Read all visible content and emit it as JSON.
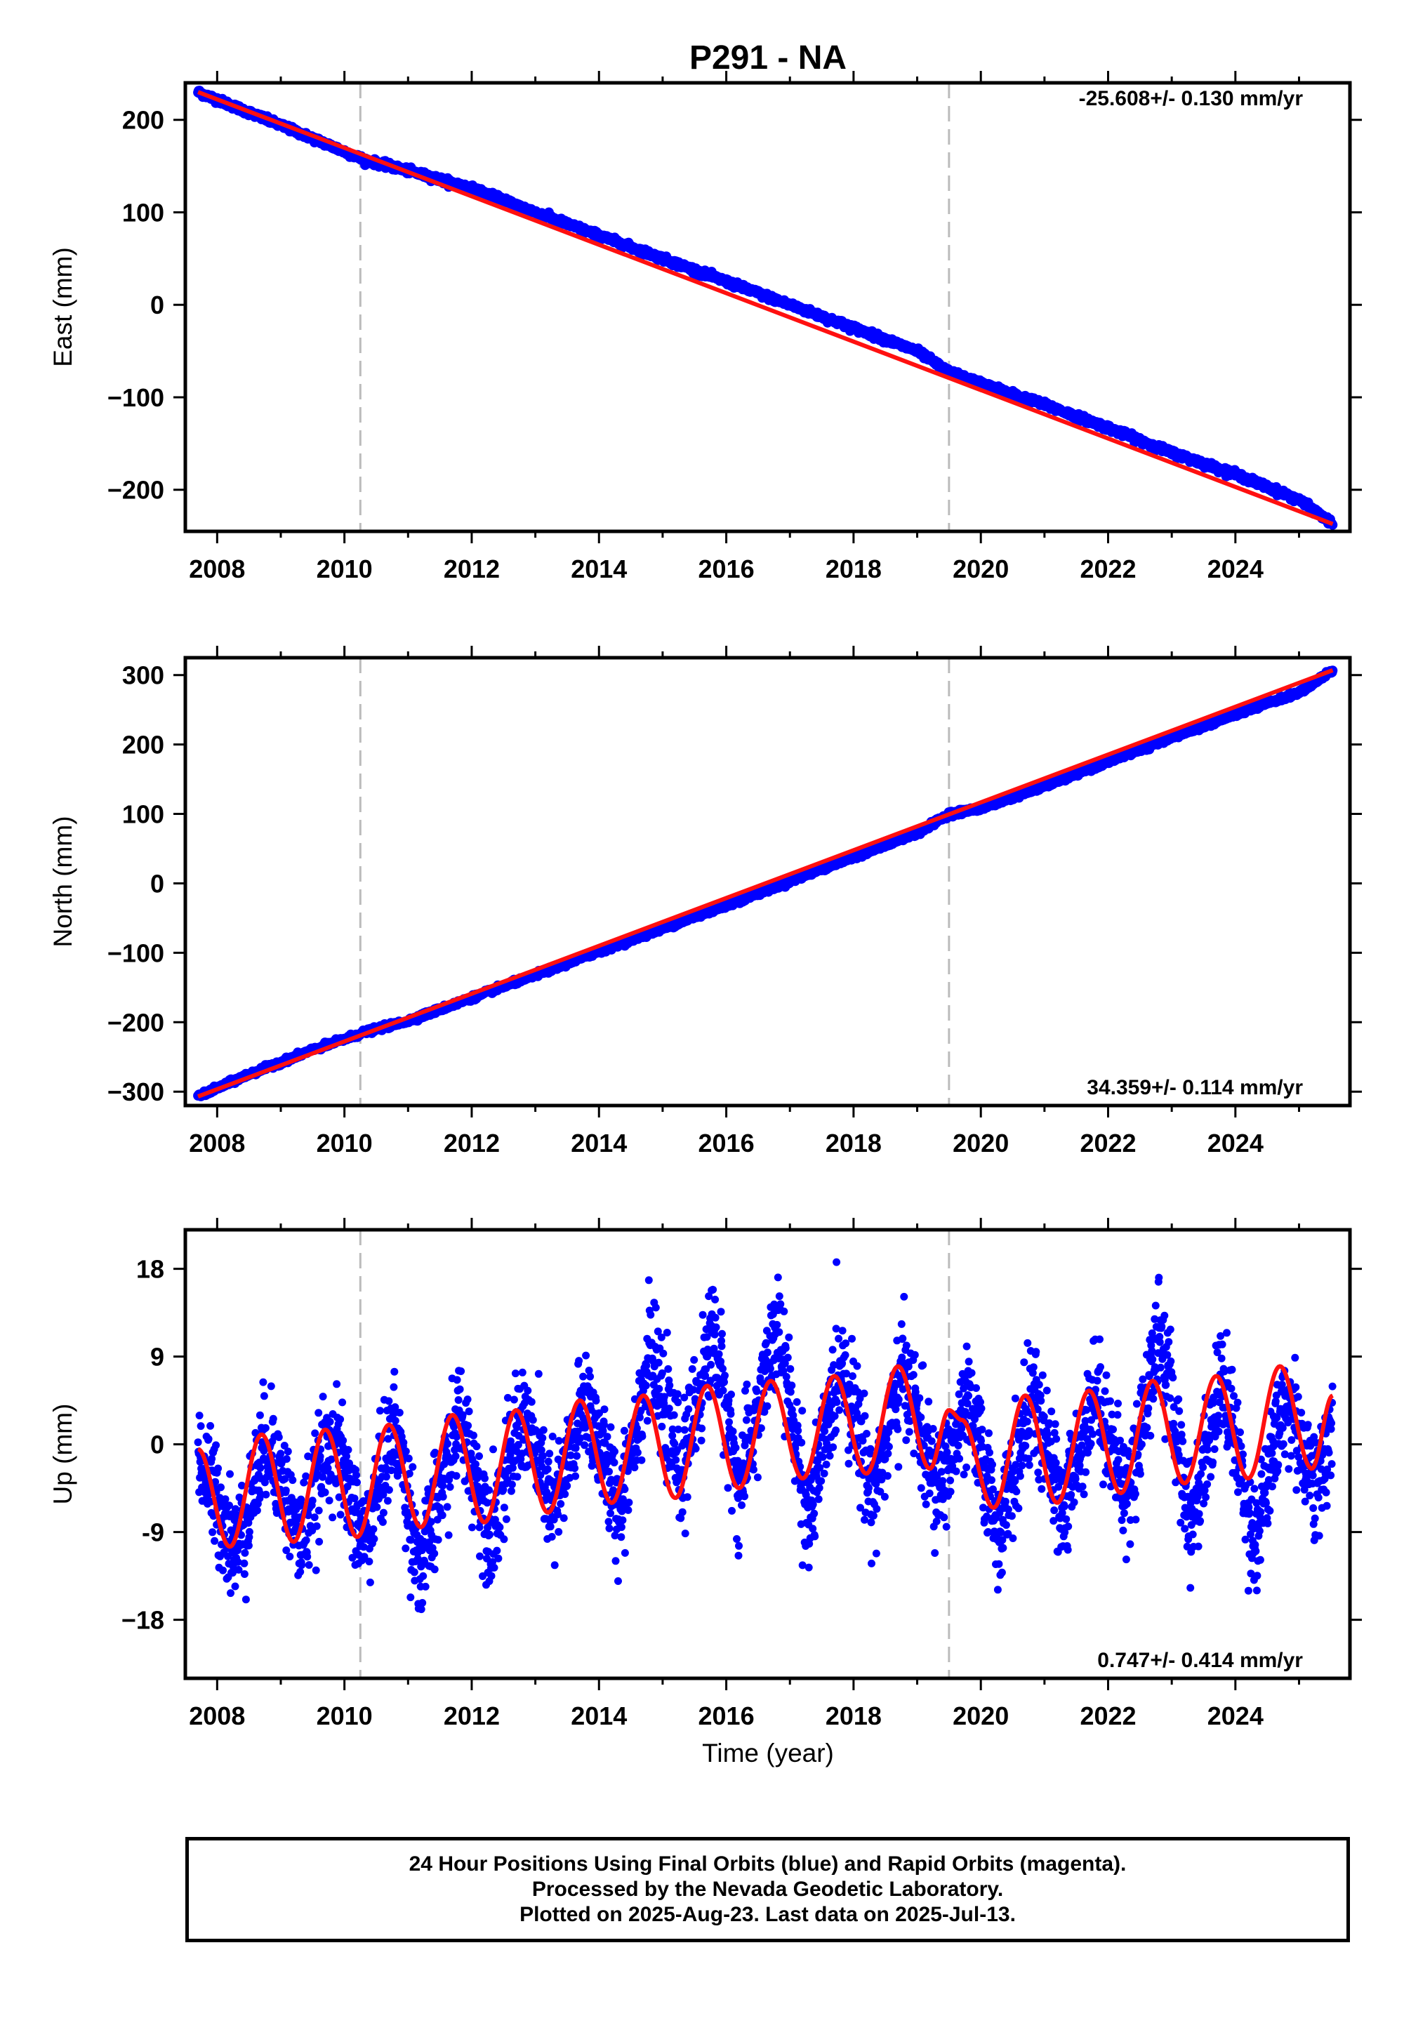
{
  "title": "P291 - NA",
  "x_label": "Time (year)",
  "footer": {
    "line1": "24 Hour Positions Using Final Orbits (blue) and Rapid Orbits (magenta).",
    "line2": "Processed by the Nevada Geodetic Laboratory.",
    "line3": "Plotted on 2025-Aug-23. Last data on 2025-Jul-13."
  },
  "colors": {
    "points": "#0000ff",
    "fit": "#ff1010",
    "event_lines": "#bbbbbb",
    "frame": "#000000"
  },
  "chart_data": [
    {
      "type": "scatter",
      "panel": "east",
      "ylabel": "East (mm)",
      "rate_text": "-25.608+/- 0.130 mm/yr",
      "xlim": [
        2007.5,
        2025.8
      ],
      "ylim": [
        -245,
        240
      ],
      "xticks": [
        2008,
        2010,
        2012,
        2014,
        2016,
        2018,
        2020,
        2022,
        2024
      ],
      "yticks": [
        200,
        100,
        0,
        -100,
        -200
      ],
      "ytick_labels": [
        "200",
        "100",
        "0",
        "−100",
        "−200"
      ],
      "event_lines_x": [
        2010.25,
        2019.5
      ],
      "series": [
        {
          "role": "observations",
          "x": [
            2007.7,
            2008.5,
            2009.5,
            2010.3,
            2011.0,
            2012.0,
            2013.0,
            2014.0,
            2015.0,
            2016.0,
            2017.0,
            2018.0,
            2019.0,
            2019.5,
            2020.0,
            2021.0,
            2022.0,
            2023.0,
            2024.0,
            2025.0,
            2025.53
          ],
          "y": [
            230,
            208,
            180,
            157,
            145,
            126,
            100,
            75,
            50,
            25,
            0,
            -25,
            -50,
            -73,
            -85,
            -108,
            -133,
            -160,
            -183,
            -211,
            -237
          ]
        },
        {
          "role": "fit",
          "x": [
            2007.7,
            2025.53
          ],
          "y": [
            230,
            -237
          ]
        }
      ]
    },
    {
      "type": "scatter",
      "panel": "north",
      "ylabel": "North (mm)",
      "rate_text": "34.359+/- 0.114 mm/yr",
      "xlim": [
        2007.5,
        2025.8
      ],
      "ylim": [
        -320,
        325
      ],
      "xticks": [
        2008,
        2010,
        2012,
        2014,
        2016,
        2018,
        2020,
        2022,
        2024
      ],
      "yticks": [
        300,
        200,
        100,
        0,
        -100,
        -200,
        -300
      ],
      "ytick_labels": [
        "300",
        "200",
        "100",
        "0",
        "−100",
        "−200",
        "−300"
      ],
      "event_lines_x": [
        2010.25,
        2019.5
      ],
      "series": [
        {
          "role": "observations",
          "x": [
            2007.7,
            2008.5,
            2009.5,
            2010.3,
            2011.0,
            2012.0,
            2013.0,
            2014.0,
            2015.0,
            2016.0,
            2017.0,
            2018.0,
            2019.0,
            2019.5,
            2020.0,
            2021.0,
            2022.0,
            2023.0,
            2024.0,
            2025.0,
            2025.53
          ],
          "y": [
            -307,
            -275,
            -240,
            -215,
            -198,
            -165,
            -132,
            -98,
            -65,
            -32,
            3,
            38,
            72,
            100,
            108,
            140,
            175,
            210,
            243,
            275,
            307
          ]
        },
        {
          "role": "fit",
          "x": [
            2007.7,
            2025.53
          ],
          "y": [
            -307,
            307
          ]
        }
      ]
    },
    {
      "type": "scatter",
      "panel": "up",
      "ylabel": "Up (mm)",
      "rate_text": "0.747+/- 0.414 mm/yr",
      "xlim": [
        2007.5,
        2025.8
      ],
      "ylim": [
        -24,
        22
      ],
      "xticks": [
        2008,
        2010,
        2012,
        2014,
        2016,
        2018,
        2020,
        2022,
        2024
      ],
      "yticks": [
        18,
        9,
        0,
        -9,
        -18
      ],
      "ytick_labels": [
        "18",
        "9",
        "0",
        "-9",
        "−18"
      ],
      "event_lines_x": [
        2010.25,
        2019.5
      ],
      "series": [
        {
          "role": "observations",
          "x": [
            2007.7,
            2008.3,
            2008.8,
            2009.3,
            2009.8,
            2010.3,
            2010.8,
            2011.2,
            2011.8,
            2012.3,
            2012.8,
            2013.3,
            2013.8,
            2014.3,
            2014.8,
            2015.3,
            2015.8,
            2016.2,
            2016.8,
            2017.3,
            2017.8,
            2018.3,
            2018.8,
            2019.3,
            2019.8,
            2020.3,
            2020.8,
            2021.3,
            2021.8,
            2022.3,
            2022.8,
            2023.3,
            2023.8,
            2024.3,
            2024.8,
            2025.3,
            2025.53
          ],
          "y": [
            -1,
            -11,
            1,
            -10,
            1,
            -10,
            2,
            -13,
            3,
            -9,
            3,
            -7,
            5,
            -7,
            9,
            -3,
            12,
            -5,
            12,
            -8,
            9,
            -5,
            8,
            -5,
            4,
            -9,
            5,
            -7,
            6,
            -6,
            12,
            -8,
            7,
            -10,
            5,
            -5,
            3
          ]
        },
        {
          "role": "fit",
          "x": [
            2007.7,
            2008.2,
            2008.7,
            2009.2,
            2009.7,
            2010.2,
            2010.7,
            2011.2,
            2011.7,
            2012.2,
            2012.7,
            2013.2,
            2013.7,
            2014.2,
            2014.7,
            2015.2,
            2015.7,
            2016.2,
            2016.7,
            2017.2,
            2017.7,
            2018.2,
            2018.7,
            2019.2,
            2019.5,
            2019.7,
            2020.2,
            2020.7,
            2021.2,
            2021.7,
            2022.2,
            2022.7,
            2023.2,
            2023.7,
            2024.2,
            2024.7,
            2025.2,
            2025.53
          ],
          "y": [
            -0.5,
            -10.5,
            1.0,
            -10.0,
            1.5,
            -9.5,
            2.0,
            -8.5,
            3.0,
            -8.0,
            3.5,
            -7.0,
            4.5,
            -6.0,
            5.0,
            -5.5,
            6.0,
            -4.5,
            6.5,
            -3.5,
            7.0,
            -3.0,
            8.0,
            -2.5,
            3.5,
            2.5,
            -6.5,
            5.0,
            -6.0,
            5.5,
            -5.0,
            6.5,
            -4.0,
            7.0,
            -3.5,
            8.0,
            -2.5,
            5.0
          ]
        }
      ]
    }
  ]
}
